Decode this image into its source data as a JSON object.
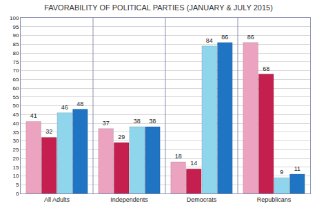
{
  "chart_data": {
    "type": "bar",
    "title": "FAVORABILITY OF POLITICAL PARTIES (JANUARY & JULY 2015)",
    "categories": [
      "All Adults",
      "Independents",
      "Democrats",
      "Republicans"
    ],
    "series": [
      {
        "color": "#eba3bf",
        "values": [
          41,
          37,
          18,
          86
        ]
      },
      {
        "color": "#c41f4f",
        "values": [
          32,
          29,
          14,
          68
        ]
      },
      {
        "color": "#8fd6ec",
        "values": [
          46,
          38,
          84,
          9
        ]
      },
      {
        "color": "#1f74c4",
        "values": [
          48,
          38,
          86,
          11
        ]
      }
    ],
    "ylim": [
      0,
      100
    ],
    "yticks": [
      0,
      5,
      10,
      15,
      20,
      25,
      30,
      35,
      40,
      45,
      50,
      55,
      60,
      65,
      70,
      75,
      80,
      85,
      90,
      95,
      100
    ],
    "grid": true,
    "data_labels": true
  }
}
